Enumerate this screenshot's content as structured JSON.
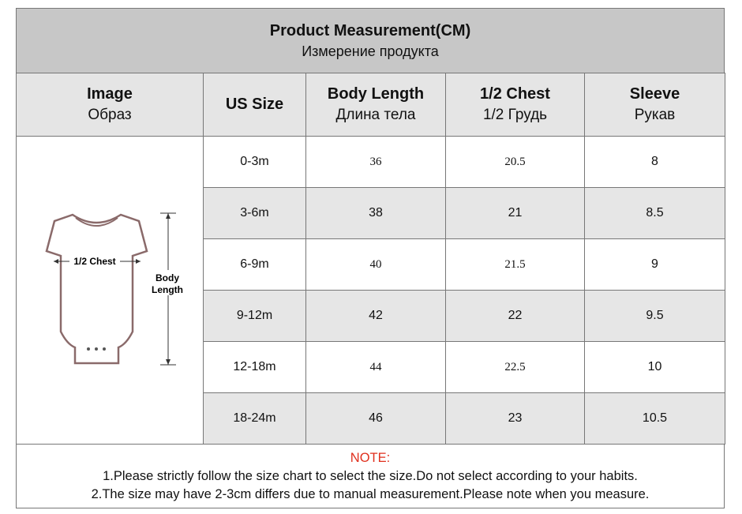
{
  "header": {
    "title": "Product Measurement(CM)",
    "subtitle": "Измерение продукта"
  },
  "table": {
    "columns": [
      {
        "label": "Image",
        "sub": "Образ"
      },
      {
        "label": "US Size"
      },
      {
        "label": "Body Length",
        "sub": "Длина тела"
      },
      {
        "label": "1/2 Chest",
        "sub": "1/2 Грудь"
      },
      {
        "label": "Sleeve",
        "sub": "Рукав"
      }
    ],
    "rows": [
      [
        "0-3m",
        36,
        20.5,
        8
      ],
      [
        "3-6m",
        38,
        21,
        8.5
      ],
      [
        "6-9m",
        40,
        21.5,
        9
      ],
      [
        "9-12m",
        42,
        22,
        9.5
      ],
      [
        "12-18m",
        44,
        22.5,
        10
      ],
      [
        "18-24m",
        46,
        23,
        10.5
      ]
    ]
  },
  "image": {
    "chest_label": "1/2 Chest",
    "length_label": [
      "Body",
      "Length"
    ]
  },
  "notes": {
    "heading": "NOTE:",
    "lines": [
      "1.Please strictly follow the size chart to select the size.Do not select according to your habits.",
      "2.The size may have 2-3cm differs due to manual measurement.Please note when you measure."
    ]
  }
}
